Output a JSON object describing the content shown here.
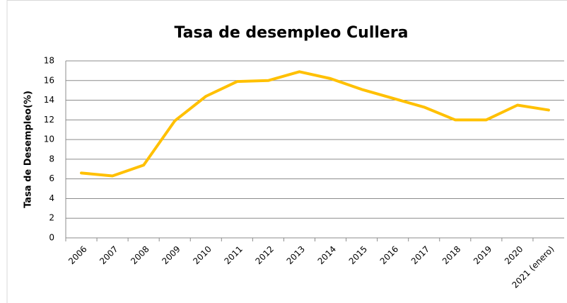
{
  "chart_data": {
    "type": "line",
    "title": "Tasa de desempleo Cullera",
    "y_label": "Tasa de Desempleo(%)",
    "categories": [
      "2006",
      "2007",
      "2008",
      "2009",
      "2010",
      "2011",
      "2012",
      "2013",
      "2014",
      "2015",
      "2016",
      "2017",
      "2018",
      "2019",
      "2020",
      "2021 (enero)"
    ],
    "values": [
      6.6,
      6.3,
      7.4,
      11.9,
      14.4,
      15.9,
      16.0,
      16.9,
      16.2,
      15.1,
      14.2,
      13.3,
      12.0,
      12.0,
      13.5,
      13.0
    ],
    "color": "#ffc000",
    "ylim": [
      0,
      18
    ],
    "yticks": [
      0,
      2,
      4,
      6,
      8,
      10,
      12,
      14,
      16,
      18
    ],
    "grid": true
  }
}
